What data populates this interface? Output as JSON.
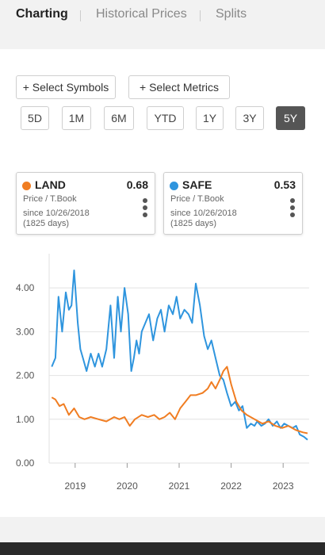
{
  "tabs": [
    {
      "label": "Charting",
      "active": true
    },
    {
      "label": "Historical Prices",
      "active": false
    },
    {
      "label": "Splits",
      "active": false
    }
  ],
  "actions": {
    "select_symbols": "+ Select Symbols",
    "select_metrics": "+ Select Metrics"
  },
  "ranges": [
    {
      "label": "5D",
      "active": false
    },
    {
      "label": "1M",
      "active": false
    },
    {
      "label": "6M",
      "active": false
    },
    {
      "label": "YTD",
      "active": false
    },
    {
      "label": "1Y",
      "active": false
    },
    {
      "label": "3Y",
      "active": false
    },
    {
      "label": "5Y",
      "active": true
    }
  ],
  "cards": [
    {
      "symbol": "LAND",
      "value": "0.68",
      "metric": "Price / T.Book",
      "since": "since 10/26/2018",
      "days": "(1825 days)",
      "color": "#f07d22"
    },
    {
      "symbol": "SAFE",
      "value": "0.53",
      "metric": "Price / T.Book",
      "since": "since 10/26/2018",
      "days": "(1825 days)",
      "color": "#2f95de"
    }
  ],
  "chart_data": {
    "type": "line",
    "title": "",
    "xlabel": "",
    "ylabel": "",
    "ylim": [
      0,
      4.6
    ],
    "yticks": [
      "0.00",
      "1.00",
      "2.00",
      "3.00",
      "4.00"
    ],
    "xticks": [
      "2019",
      "2020",
      "2021",
      "2022",
      "2023"
    ],
    "grid": true,
    "series": [
      {
        "name": "SAFE",
        "color": "#2f95de",
        "x": [
          2018.55,
          2018.62,
          2018.68,
          2018.75,
          2018.82,
          2018.88,
          2018.93,
          2018.98,
          2019.05,
          2019.1,
          2019.15,
          2019.22,
          2019.3,
          2019.38,
          2019.45,
          2019.52,
          2019.6,
          2019.68,
          2019.75,
          2019.82,
          2019.88,
          2019.95,
          2020.02,
          2020.08,
          2020.13,
          2020.18,
          2020.23,
          2020.28,
          2020.35,
          2020.42,
          2020.5,
          2020.58,
          2020.65,
          2020.72,
          2020.8,
          2020.88,
          2020.95,
          2021.02,
          2021.1,
          2021.18,
          2021.25,
          2021.32,
          2021.4,
          2021.48,
          2021.55,
          2021.62,
          2021.7,
          2021.78,
          2021.85,
          2021.92,
          2022.0,
          2022.08,
          2022.15,
          2022.22,
          2022.3,
          2022.38,
          2022.45,
          2022.5,
          2022.58,
          2022.65,
          2022.72,
          2022.8,
          2022.88,
          2022.95,
          2023.02,
          2023.1,
          2023.18,
          2023.25,
          2023.32,
          2023.4,
          2023.47
        ],
        "y": [
          2.2,
          2.4,
          3.8,
          3.0,
          3.9,
          3.5,
          3.6,
          4.4,
          3.2,
          2.6,
          2.4,
          2.1,
          2.5,
          2.2,
          2.5,
          2.2,
          2.6,
          3.6,
          2.4,
          3.8,
          3.0,
          4.0,
          3.4,
          2.1,
          2.4,
          2.8,
          2.5,
          3.0,
          3.2,
          3.4,
          2.8,
          3.3,
          3.5,
          3.0,
          3.6,
          3.4,
          3.8,
          3.3,
          3.5,
          3.4,
          3.2,
          4.1,
          3.6,
          2.9,
          2.6,
          2.8,
          2.4,
          2.0,
          1.9,
          1.6,
          1.3,
          1.4,
          1.2,
          1.3,
          0.8,
          0.9,
          0.85,
          0.95,
          0.85,
          0.9,
          1.0,
          0.85,
          0.95,
          0.8,
          0.9,
          0.85,
          0.8,
          0.85,
          0.65,
          0.6,
          0.53
        ]
      },
      {
        "name": "LAND",
        "color": "#f07d22",
        "x": [
          2018.55,
          2018.62,
          2018.7,
          2018.78,
          2018.88,
          2018.98,
          2019.08,
          2019.18,
          2019.3,
          2019.45,
          2019.6,
          2019.75,
          2019.85,
          2019.95,
          2020.05,
          2020.15,
          2020.28,
          2020.4,
          2020.52,
          2020.62,
          2020.72,
          2020.82,
          2020.92,
          2021.02,
          2021.12,
          2021.22,
          2021.32,
          2021.45,
          2021.55,
          2021.62,
          2021.7,
          2021.78,
          2021.85,
          2021.92,
          2022.0,
          2022.1,
          2022.2,
          2022.3,
          2022.45,
          2022.6,
          2022.72,
          2022.85,
          2022.98,
          2023.1,
          2023.25,
          2023.38,
          2023.47
        ],
        "y": [
          1.5,
          1.45,
          1.3,
          1.35,
          1.1,
          1.25,
          1.05,
          1.0,
          1.05,
          1.0,
          0.95,
          1.05,
          1.0,
          1.05,
          0.85,
          1.0,
          1.1,
          1.05,
          1.1,
          1.0,
          1.05,
          1.15,
          1.0,
          1.25,
          1.4,
          1.55,
          1.55,
          1.6,
          1.7,
          1.85,
          1.7,
          1.9,
          2.1,
          2.2,
          1.8,
          1.4,
          1.2,
          1.1,
          1.0,
          0.9,
          0.95,
          0.85,
          0.8,
          0.85,
          0.75,
          0.7,
          0.68
        ]
      }
    ]
  }
}
